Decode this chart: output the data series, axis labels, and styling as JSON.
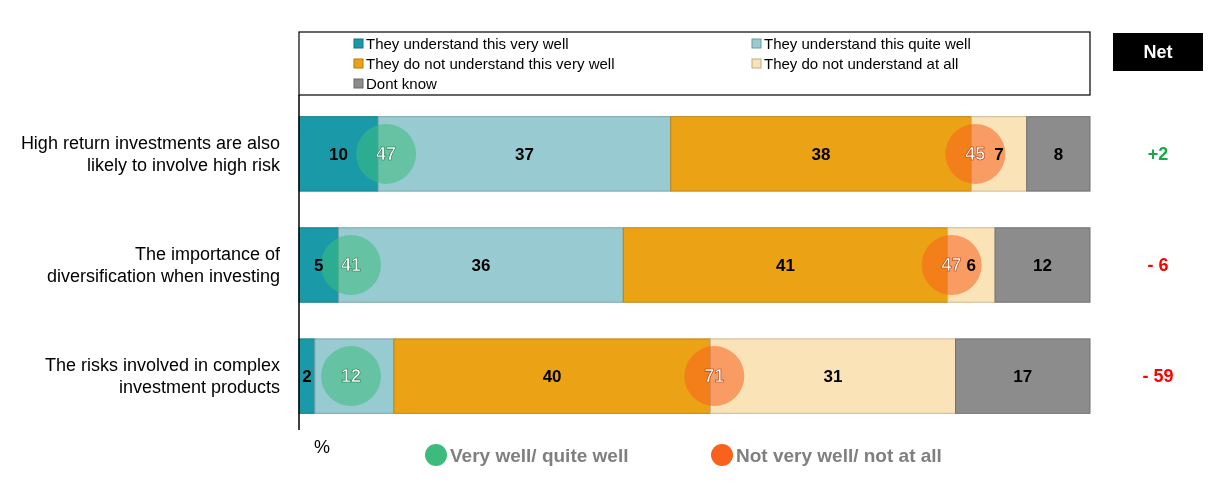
{
  "chart_data": {
    "type": "bar",
    "orientation": "horizontal",
    "stacked": true,
    "legend": "top",
    "xlabel": "%",
    "xlim": [
      0,
      100
    ],
    "categories": [
      "High return investments are also likely to involve high risk",
      "The importance of diversification when investing",
      "The risks involved in complex investment products"
    ],
    "series": [
      {
        "name": "They understand this very well",
        "color": "#1a9aa8",
        "values": [
          10,
          5,
          2
        ],
        "value_labels": [
          "10",
          "5",
          "2"
        ]
      },
      {
        "name": "They understand this quite well",
        "color": "#97cbd1",
        "values": [
          37,
          36,
          10
        ],
        "value_labels": [
          "37",
          "36",
          null
        ]
      },
      {
        "name": "They do not understand this very well",
        "color": "#eba315",
        "values": [
          38,
          41,
          40
        ],
        "value_labels": [
          "38",
          "41",
          "40"
        ]
      },
      {
        "name": "They do not understand at all",
        "color": "#fbe3b8",
        "values": [
          7,
          6,
          31
        ],
        "value_labels": [
          "7",
          "6",
          "31"
        ]
      },
      {
        "name": "Dont know",
        "color": "#8c8c8c",
        "values": [
          8,
          12,
          17
        ],
        "value_labels": [
          "8",
          "12",
          "17"
        ]
      }
    ],
    "annotations": [
      "Net",
      "Very well/ quite well",
      "Not very well/ not at all",
      {
        "text": "47",
        "x": 10,
        "y": "High return investments are also likely to involve high risk"
      },
      {
        "text": "45",
        "x": 85,
        "y": "High return investments are also likely to involve high risk"
      },
      "+2",
      {
        "text": "41",
        "x": 5,
        "y": "The importance of diversification when investing"
      },
      {
        "text": "47",
        "x": 82,
        "y": "The importance of diversification when investing"
      },
      "- 6",
      {
        "text": "12",
        "x": 2,
        "y": "The risks involved in complex investment products"
      },
      {
        "text": "71",
        "x": 52,
        "y": "The risks involved in complex investment products"
      },
      "- 59"
    ]
  }
}
